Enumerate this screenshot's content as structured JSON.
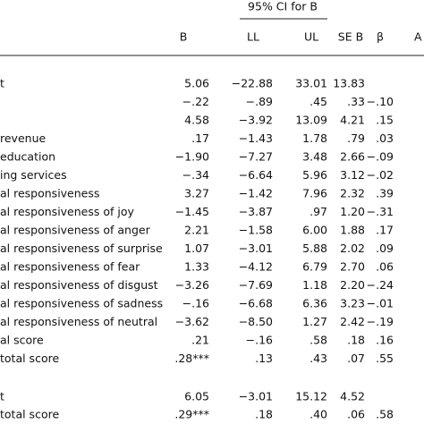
{
  "table": {
    "group_header": "95% CI for B",
    "columns": [
      "B",
      "LL",
      "UL",
      "SE B",
      "β",
      "A"
    ],
    "rows": [
      [
        "t",
        "5.06",
        "−22.88",
        "33.01",
        "13.83",
        null
      ],
      [
        null,
        "−.22",
        "−.89",
        ".45",
        ".33",
        "−.10"
      ],
      [
        null,
        "4.58",
        "−3.92",
        "13.09",
        "4.21",
        ".15"
      ],
      [
        "revenue",
        ".17",
        "−1.43",
        "1.78",
        ".79",
        ".03"
      ],
      [
        "education",
        "−1.90",
        "−7.27",
        "3.48",
        "2.66",
        "−.09"
      ],
      [
        "ing services",
        "−.34",
        "−6.64",
        "5.96",
        "3.12",
        "−.02"
      ],
      [
        "al responsiveness",
        "3.27",
        "−1.42",
        "7.96",
        "2.32",
        ".39"
      ],
      [
        "al responsiveness of joy",
        "−1.45",
        "−3.87",
        ".97",
        "1.20",
        "−.31"
      ],
      [
        "al responsiveness of anger",
        "2.21",
        "−1.58",
        "6.00",
        "1.88",
        ".17"
      ],
      [
        "al responsiveness of surprise",
        "1.07",
        "−3.01",
        "5.88",
        "2.02",
        ".09"
      ],
      [
        "al responsiveness of fear",
        "1.33",
        "−4.12",
        "6.79",
        "2.70",
        ".06"
      ],
      [
        "al responsiveness of disgust",
        "−3.26",
        "−7.69",
        "1.18",
        "2.20",
        "−.24"
      ],
      [
        "al responsiveness of sadness",
        "−.16",
        "−6.68",
        "6.36",
        "3.23",
        "−.01"
      ],
      [
        "al responsiveness of neutral",
        "−3.62",
        "−8.50",
        "1.27",
        "2.42",
        "−.19"
      ],
      [
        "al score",
        ".21",
        "−.16",
        ".58",
        ".18",
        ".16"
      ],
      [
        "total score",
        ".28***",
        ".13",
        ".43",
        ".07",
        ".55"
      ],
      [
        "t",
        "6.05",
        "−3.01",
        "15.12",
        "4.52",
        null
      ],
      [
        "total score",
        ".29***",
        ".18",
        ".40",
        ".06",
        ".58"
      ]
    ]
  }
}
